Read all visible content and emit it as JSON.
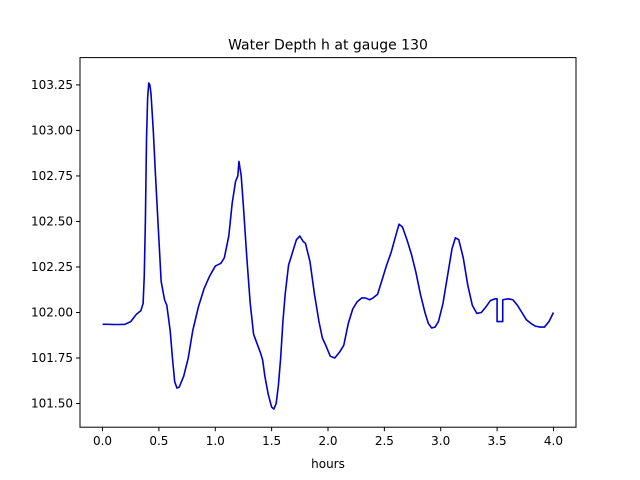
{
  "chart_data": {
    "type": "line",
    "title": "Water Depth h at gauge 130",
    "xlabel": "hours",
    "ylabel": "",
    "xlim": [
      -0.2,
      4.2
    ],
    "ylim": [
      101.37,
      103.4
    ],
    "xticks": [
      0.0,
      0.5,
      1.0,
      1.5,
      2.0,
      2.5,
      3.0,
      3.5,
      4.0
    ],
    "xtick_labels": [
      "0.0",
      "0.5",
      "1.0",
      "1.5",
      "2.0",
      "2.5",
      "3.0",
      "3.5",
      "4.0"
    ],
    "yticks": [
      101.5,
      101.75,
      102.0,
      102.25,
      102.5,
      102.75,
      103.0,
      103.25
    ],
    "ytick_labels": [
      "101.50",
      "101.75",
      "102.00",
      "102.25",
      "102.50",
      "102.75",
      "103.00",
      "103.25"
    ],
    "grid": false,
    "legend": "none",
    "series": [
      {
        "color": "#0000cc",
        "points": [
          [
            0.0,
            101.935
          ],
          [
            0.05,
            101.935
          ],
          [
            0.1,
            101.934
          ],
          [
            0.15,
            101.934
          ],
          [
            0.2,
            101.935
          ],
          [
            0.25,
            101.95
          ],
          [
            0.3,
            101.99
          ],
          [
            0.34,
            102.01
          ],
          [
            0.36,
            102.05
          ],
          [
            0.37,
            102.2
          ],
          [
            0.38,
            102.5
          ],
          [
            0.39,
            102.95
          ],
          [
            0.4,
            103.18
          ],
          [
            0.41,
            103.26
          ],
          [
            0.42,
            103.25
          ],
          [
            0.43,
            103.2
          ],
          [
            0.45,
            103.0
          ],
          [
            0.47,
            102.75
          ],
          [
            0.5,
            102.4
          ],
          [
            0.52,
            102.17
          ],
          [
            0.55,
            102.07
          ],
          [
            0.57,
            102.04
          ],
          [
            0.6,
            101.9
          ],
          [
            0.62,
            101.75
          ],
          [
            0.64,
            101.62
          ],
          [
            0.66,
            101.585
          ],
          [
            0.68,
            101.59
          ],
          [
            0.72,
            101.65
          ],
          [
            0.76,
            101.75
          ],
          [
            0.8,
            101.9
          ],
          [
            0.85,
            102.03
          ],
          [
            0.9,
            102.13
          ],
          [
            0.95,
            102.2
          ],
          [
            1.0,
            102.255
          ],
          [
            1.05,
            102.27
          ],
          [
            1.08,
            102.3
          ],
          [
            1.12,
            102.42
          ],
          [
            1.15,
            102.6
          ],
          [
            1.18,
            102.72
          ],
          [
            1.2,
            102.75
          ],
          [
            1.21,
            102.83
          ],
          [
            1.23,
            102.75
          ],
          [
            1.25,
            102.58
          ],
          [
            1.28,
            102.3
          ],
          [
            1.31,
            102.05
          ],
          [
            1.34,
            101.88
          ],
          [
            1.37,
            101.83
          ],
          [
            1.4,
            101.78
          ],
          [
            1.42,
            101.74
          ],
          [
            1.44,
            101.65
          ],
          [
            1.47,
            101.55
          ],
          [
            1.5,
            101.48
          ],
          [
            1.52,
            101.47
          ],
          [
            1.54,
            101.5
          ],
          [
            1.56,
            101.6
          ],
          [
            1.58,
            101.75
          ],
          [
            1.6,
            101.95
          ],
          [
            1.62,
            102.1
          ],
          [
            1.65,
            102.26
          ],
          [
            1.68,
            102.32
          ],
          [
            1.72,
            102.4
          ],
          [
            1.75,
            102.42
          ],
          [
            1.78,
            102.39
          ],
          [
            1.8,
            102.38
          ],
          [
            1.84,
            102.28
          ],
          [
            1.88,
            102.1
          ],
          [
            1.92,
            101.95
          ],
          [
            1.95,
            101.86
          ],
          [
            1.98,
            101.82
          ],
          [
            2.02,
            101.76
          ],
          [
            2.06,
            101.75
          ],
          [
            2.1,
            101.78
          ],
          [
            2.14,
            101.82
          ],
          [
            2.18,
            101.94
          ],
          [
            2.22,
            102.02
          ],
          [
            2.26,
            102.06
          ],
          [
            2.3,
            102.08
          ],
          [
            2.33,
            102.08
          ],
          [
            2.37,
            102.07
          ],
          [
            2.4,
            102.08
          ],
          [
            2.44,
            102.1
          ],
          [
            2.48,
            102.18
          ],
          [
            2.52,
            102.26
          ],
          [
            2.56,
            102.33
          ],
          [
            2.6,
            102.42
          ],
          [
            2.63,
            102.485
          ],
          [
            2.66,
            102.47
          ],
          [
            2.7,
            102.4
          ],
          [
            2.74,
            102.32
          ],
          [
            2.78,
            102.22
          ],
          [
            2.82,
            102.1
          ],
          [
            2.86,
            102.0
          ],
          [
            2.89,
            101.94
          ],
          [
            2.92,
            101.915
          ],
          [
            2.95,
            101.92
          ],
          [
            2.98,
            101.95
          ],
          [
            3.02,
            102.05
          ],
          [
            3.06,
            102.2
          ],
          [
            3.1,
            102.35
          ],
          [
            3.13,
            102.41
          ],
          [
            3.16,
            102.4
          ],
          [
            3.2,
            102.3
          ],
          [
            3.24,
            102.15
          ],
          [
            3.28,
            102.04
          ],
          [
            3.32,
            101.995
          ],
          [
            3.36,
            102.0
          ],
          [
            3.4,
            102.03
          ],
          [
            3.44,
            102.065
          ],
          [
            3.48,
            102.075
          ],
          [
            3.5,
            102.075
          ],
          [
            3.5,
            101.95
          ],
          [
            3.55,
            101.95
          ],
          [
            3.55,
            102.07
          ],
          [
            3.6,
            102.075
          ],
          [
            3.64,
            102.07
          ],
          [
            3.68,
            102.04
          ],
          [
            3.72,
            102.0
          ],
          [
            3.76,
            101.96
          ],
          [
            3.8,
            101.94
          ],
          [
            3.84,
            101.925
          ],
          [
            3.88,
            101.92
          ],
          [
            3.92,
            101.92
          ],
          [
            3.96,
            101.95
          ],
          [
            4.0,
            102.0
          ]
        ]
      }
    ]
  }
}
